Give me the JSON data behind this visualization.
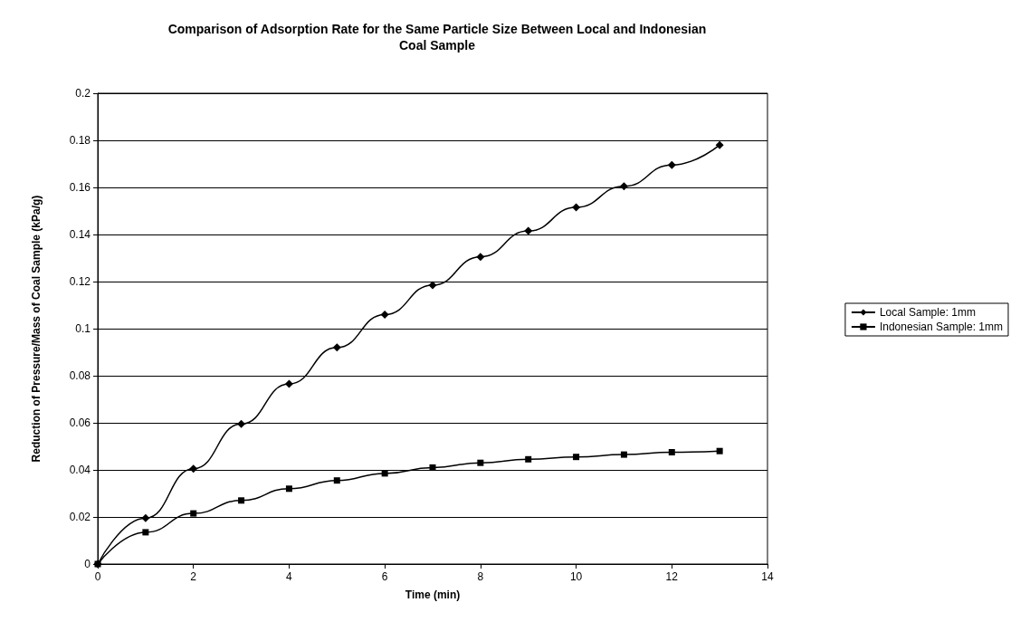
{
  "chart_data": {
    "type": "line",
    "title": "Comparison of Adsorption Rate for the Same Particle Size Between Local and Indonesian\nCoal Sample",
    "xlabel": "Time (min)",
    "ylabel": "Reduction of Pressure/Mass of Coal Sample (kPa/g)",
    "x": [
      0,
      1,
      2,
      3,
      4,
      5,
      6,
      7,
      8,
      9,
      10,
      11,
      12,
      13
    ],
    "series": [
      {
        "name": "Local Sample: 1mm",
        "color": "#000000",
        "marker": "diamond",
        "values": [
          0,
          0.0195,
          0.0405,
          0.0595,
          0.0765,
          0.092,
          0.106,
          0.1185,
          0.1305,
          0.1415,
          0.1515,
          0.1605,
          0.1695,
          0.178
        ]
      },
      {
        "name": "Indonesian Sample: 1mm",
        "color": "#000000",
        "marker": "square",
        "values": [
          0,
          0.0135,
          0.0215,
          0.027,
          0.032,
          0.0355,
          0.0385,
          0.041,
          0.043,
          0.0445,
          0.0455,
          0.0465,
          0.0475,
          0.048
        ]
      }
    ],
    "xlim": [
      0,
      14
    ],
    "xticks": [
      0,
      2,
      4,
      6,
      8,
      10,
      12,
      14
    ],
    "ylim": [
      0,
      0.2
    ],
    "yticks": [
      0,
      0.02,
      0.04,
      0.06,
      0.08,
      0.1,
      0.12,
      0.14,
      0.16,
      0.18,
      0.2
    ],
    "grid": "y",
    "legend": "right",
    "line_style": "solid"
  }
}
